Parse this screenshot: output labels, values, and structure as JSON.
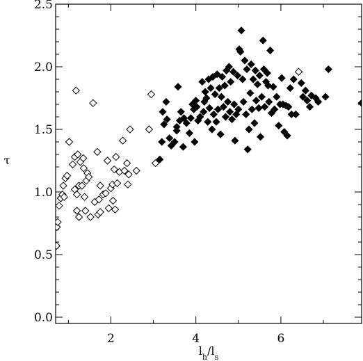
{
  "chart_data": {
    "type": "scatter",
    "title": "",
    "xlabel": {
      "main": "l",
      "sub1": "h",
      "sep": "/l",
      "sub2": "s"
    },
    "ylabel": "τ",
    "xlim": [
      0.7,
      7.9
    ],
    "ylim": [
      -0.05,
      2.5
    ],
    "x_ticks": [
      {
        "value": 2,
        "label": "2"
      },
      {
        "value": 4,
        "label": "4"
      },
      {
        "value": 6,
        "label": "6"
      }
    ],
    "y_ticks": [
      {
        "value": 0.0,
        "label": "0.0"
      },
      {
        "value": 0.5,
        "label": "0.5"
      },
      {
        "value": 1.0,
        "label": "1.0"
      },
      {
        "value": 1.5,
        "label": "1.5"
      },
      {
        "value": 2.0,
        "label": "2.0"
      },
      {
        "value": 2.5,
        "label": "2.5"
      }
    ],
    "grid": false,
    "series": [
      {
        "marker": "diamond-open",
        "color": "#000000",
        "points": [
          [
            0.72,
            0.57
          ],
          [
            0.73,
            0.72
          ],
          [
            0.75,
            0.76
          ],
          [
            0.78,
            0.89
          ],
          [
            0.82,
            0.95
          ],
          [
            0.86,
            0.98
          ],
          [
            0.9,
            0.96
          ],
          [
            0.88,
            1.05
          ],
          [
            0.93,
            1.11
          ],
          [
            0.97,
            1.13
          ],
          [
            1.02,
            1.4
          ],
          [
            1.1,
            1.22
          ],
          [
            1.15,
            1.02
          ],
          [
            1.15,
            1.28
          ],
          [
            1.18,
            1.81
          ],
          [
            1.2,
            0.85
          ],
          [
            1.2,
            0.98
          ],
          [
            1.22,
            1.3
          ],
          [
            1.25,
            0.8
          ],
          [
            1.25,
            1.05
          ],
          [
            1.28,
            1.24
          ],
          [
            1.32,
            1.05
          ],
          [
            1.35,
            1.27
          ],
          [
            1.36,
            1.19
          ],
          [
            1.38,
            0.96
          ],
          [
            1.4,
            0.85
          ],
          [
            1.42,
            1.09
          ],
          [
            1.45,
            1.15
          ],
          [
            1.48,
            1.12
          ],
          [
            1.52,
            0.8
          ],
          [
            1.58,
            1.71
          ],
          [
            1.62,
            0.92
          ],
          [
            1.68,
            1.32
          ],
          [
            1.7,
            0.82
          ],
          [
            1.72,
            0.94
          ],
          [
            1.75,
            1.05
          ],
          [
            1.75,
            0.84
          ],
          [
            1.82,
            0.98
          ],
          [
            1.88,
            0.99
          ],
          [
            1.92,
            1.25
          ],
          [
            1.95,
            0.87
          ],
          [
            2.0,
            1.03
          ],
          [
            2.04,
            1.06
          ],
          [
            2.05,
            0.93
          ],
          [
            2.08,
            1.18
          ],
          [
            2.1,
            0.86
          ],
          [
            2.12,
            1.28
          ],
          [
            2.15,
            1.07
          ],
          [
            2.2,
            1.16
          ],
          [
            2.28,
            1.41
          ],
          [
            2.32,
            1.17
          ],
          [
            2.38,
            1.23
          ],
          [
            2.4,
            1.06
          ],
          [
            2.42,
            1.14
          ],
          [
            2.45,
            1.5
          ],
          [
            2.6,
            1.17
          ],
          [
            2.9,
            1.5
          ],
          [
            2.95,
            1.78
          ],
          [
            3.05,
            1.23
          ],
          [
            6.42,
            1.96
          ]
        ]
      },
      {
        "marker": "diamond-filled",
        "color": "#000000",
        "points": [
          [
            3.15,
            1.26
          ],
          [
            3.2,
            1.4
          ],
          [
            3.22,
            1.64
          ],
          [
            3.25,
            1.54
          ],
          [
            3.3,
            1.72
          ],
          [
            3.32,
            1.58
          ],
          [
            3.38,
            1.43
          ],
          [
            3.42,
            1.37
          ],
          [
            3.5,
            1.4
          ],
          [
            3.55,
            1.49
          ],
          [
            3.55,
            1.52
          ],
          [
            3.58,
            1.84
          ],
          [
            3.62,
            1.57
          ],
          [
            3.65,
            1.64
          ],
          [
            3.7,
            1.36
          ],
          [
            3.72,
            1.59
          ],
          [
            3.78,
            1.55
          ],
          [
            3.85,
            1.47
          ],
          [
            3.88,
            1.59
          ],
          [
            3.92,
            1.7
          ],
          [
            3.95,
            1.66
          ],
          [
            3.97,
            1.4
          ],
          [
            4.0,
            1.73
          ],
          [
            4.02,
            1.68
          ],
          [
            4.05,
            1.57
          ],
          [
            4.1,
            1.6
          ],
          [
            4.15,
            1.88
          ],
          [
            4.18,
            1.64
          ],
          [
            4.2,
            1.72
          ],
          [
            4.22,
            1.8
          ],
          [
            4.25,
            1.75
          ],
          [
            4.28,
            1.56
          ],
          [
            4.3,
            1.9
          ],
          [
            4.32,
            1.67
          ],
          [
            4.35,
            1.83
          ],
          [
            4.38,
            1.5
          ],
          [
            4.4,
            1.92
          ],
          [
            4.42,
            1.62
          ],
          [
            4.45,
            1.78
          ],
          [
            4.48,
            1.56
          ],
          [
            4.5,
            1.94
          ],
          [
            4.52,
            1.66
          ],
          [
            4.55,
            1.83
          ],
          [
            4.58,
            1.46
          ],
          [
            4.6,
            1.76
          ],
          [
            4.62,
            1.92
          ],
          [
            4.65,
            1.68
          ],
          [
            4.68,
            1.85
          ],
          [
            4.7,
            1.6
          ],
          [
            4.72,
            1.97
          ],
          [
            4.75,
            1.72
          ],
          [
            4.78,
            2.0
          ],
          [
            4.8,
            1.64
          ],
          [
            4.82,
            1.88
          ],
          [
            4.85,
            1.58
          ],
          [
            4.88,
            1.96
          ],
          [
            4.9,
            1.7
          ],
          [
            4.92,
            1.41
          ],
          [
            4.95,
            1.62
          ],
          [
            4.98,
            1.93
          ],
          [
            5.0,
            1.66
          ],
          [
            5.02,
            2.14
          ],
          [
            5.05,
            2.12
          ],
          [
            5.07,
            2.29
          ],
          [
            5.1,
            1.9
          ],
          [
            5.12,
            1.72
          ],
          [
            5.15,
            2.05
          ],
          [
            5.18,
            1.62
          ],
          [
            5.2,
            1.98
          ],
          [
            5.22,
            1.34
          ],
          [
            5.25,
            1.5
          ],
          [
            5.28,
            1.79
          ],
          [
            5.3,
            2.02
          ],
          [
            5.32,
            1.66
          ],
          [
            5.35,
            1.9
          ],
          [
            5.38,
            1.55
          ],
          [
            5.4,
            1.97
          ],
          [
            5.42,
            1.73
          ],
          [
            5.45,
            1.86
          ],
          [
            5.48,
            1.67
          ],
          [
            5.5,
            1.93
          ],
          [
            5.52,
            1.44
          ],
          [
            5.55,
            1.76
          ],
          [
            5.58,
            2.21
          ],
          [
            5.6,
            1.98
          ],
          [
            5.62,
            1.68
          ],
          [
            5.65,
            1.88
          ],
          [
            5.68,
            1.95
          ],
          [
            5.7,
            1.85
          ],
          [
            5.72,
            1.72
          ],
          [
            5.75,
            2.13
          ],
          [
            5.78,
            1.63
          ],
          [
            5.82,
            1.84
          ],
          [
            5.85,
            1.66
          ],
          [
            5.9,
            1.76
          ],
          [
            5.95,
            1.53
          ],
          [
            5.98,
            1.7
          ],
          [
            6.02,
            1.91
          ],
          [
            6.05,
            1.7
          ],
          [
            6.08,
            1.48
          ],
          [
            6.12,
            1.69
          ],
          [
            6.15,
            1.45
          ],
          [
            6.18,
            1.68
          ],
          [
            6.22,
            1.83
          ],
          [
            6.25,
            1.62
          ],
          [
            6.3,
            1.9
          ],
          [
            6.35,
            1.62
          ],
          [
            6.48,
            1.87
          ],
          [
            6.52,
            1.76
          ],
          [
            6.58,
            1.81
          ],
          [
            6.62,
            1.73
          ],
          [
            6.68,
            1.68
          ],
          [
            6.72,
            1.77
          ],
          [
            6.82,
            1.75
          ],
          [
            6.88,
            1.72
          ],
          [
            7.05,
            1.76
          ],
          [
            7.12,
            1.98
          ],
          [
            7.9,
            1.71
          ]
        ]
      }
    ]
  }
}
